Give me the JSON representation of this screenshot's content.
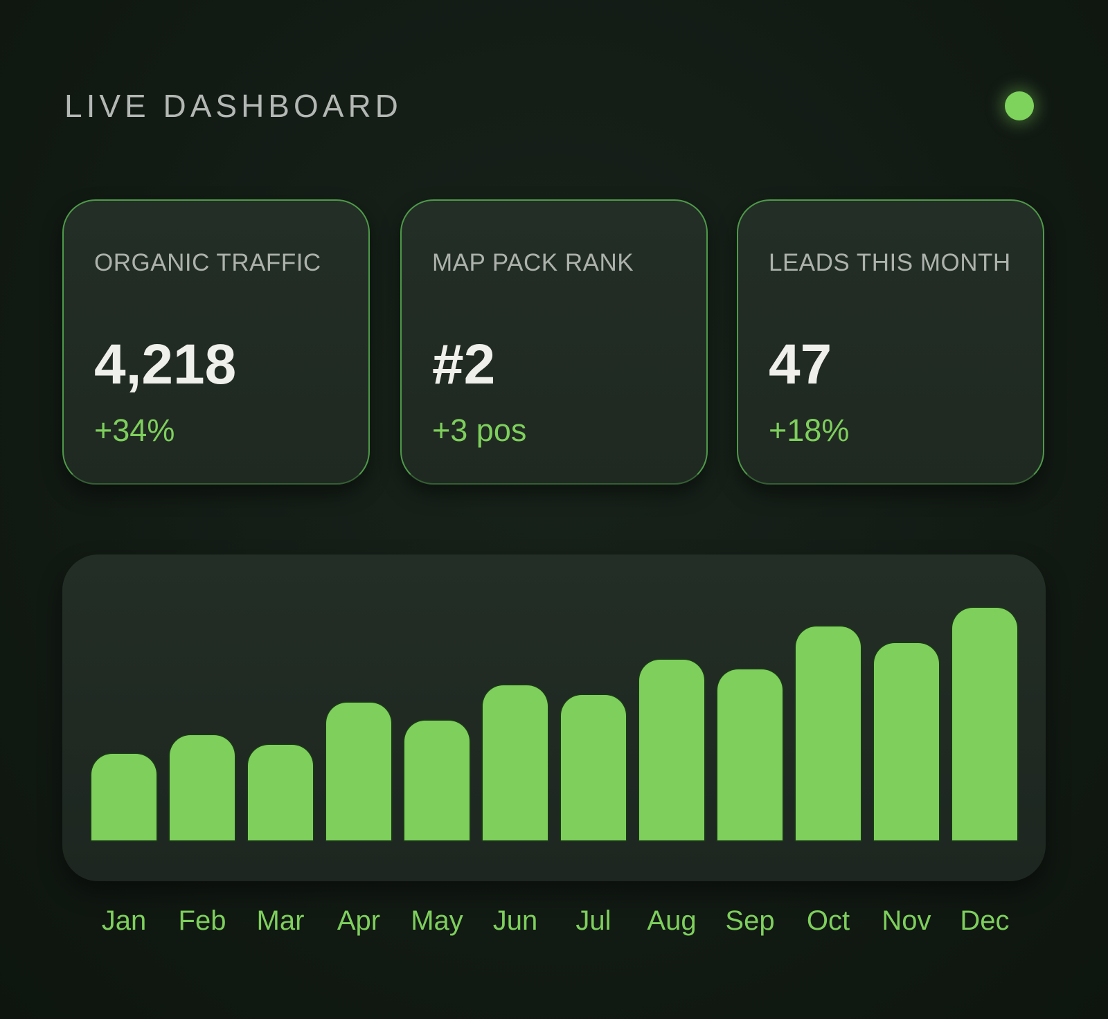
{
  "header": {
    "title": "LIVE DASHBOARD",
    "status_indicator": "live-dot",
    "status_color": "#7ed35c"
  },
  "cards": [
    {
      "label": "ORGANIC TRAFFIC",
      "value": "4,218",
      "change": "+34%"
    },
    {
      "label": "MAP PACK RANK",
      "value": "#2",
      "change": "+3 pos"
    },
    {
      "label": "LEADS THIS MONTH",
      "value": "47",
      "change": "+18%"
    }
  ],
  "colors": {
    "accent": "#7ecf5c",
    "background": "#121a14",
    "card": "#212b24"
  },
  "chart_data": {
    "type": "bar",
    "title": "",
    "xlabel": "",
    "ylabel": "",
    "categories": [
      "Jan",
      "Feb",
      "Mar",
      "Apr",
      "May",
      "Jun",
      "Jul",
      "Aug",
      "Sep",
      "Oct",
      "Nov",
      "Dec"
    ],
    "values": [
      120,
      146,
      132,
      191,
      166,
      215,
      201,
      250,
      237,
      296,
      273,
      322
    ],
    "ylim": [
      0,
      340
    ],
    "grid": false
  }
}
